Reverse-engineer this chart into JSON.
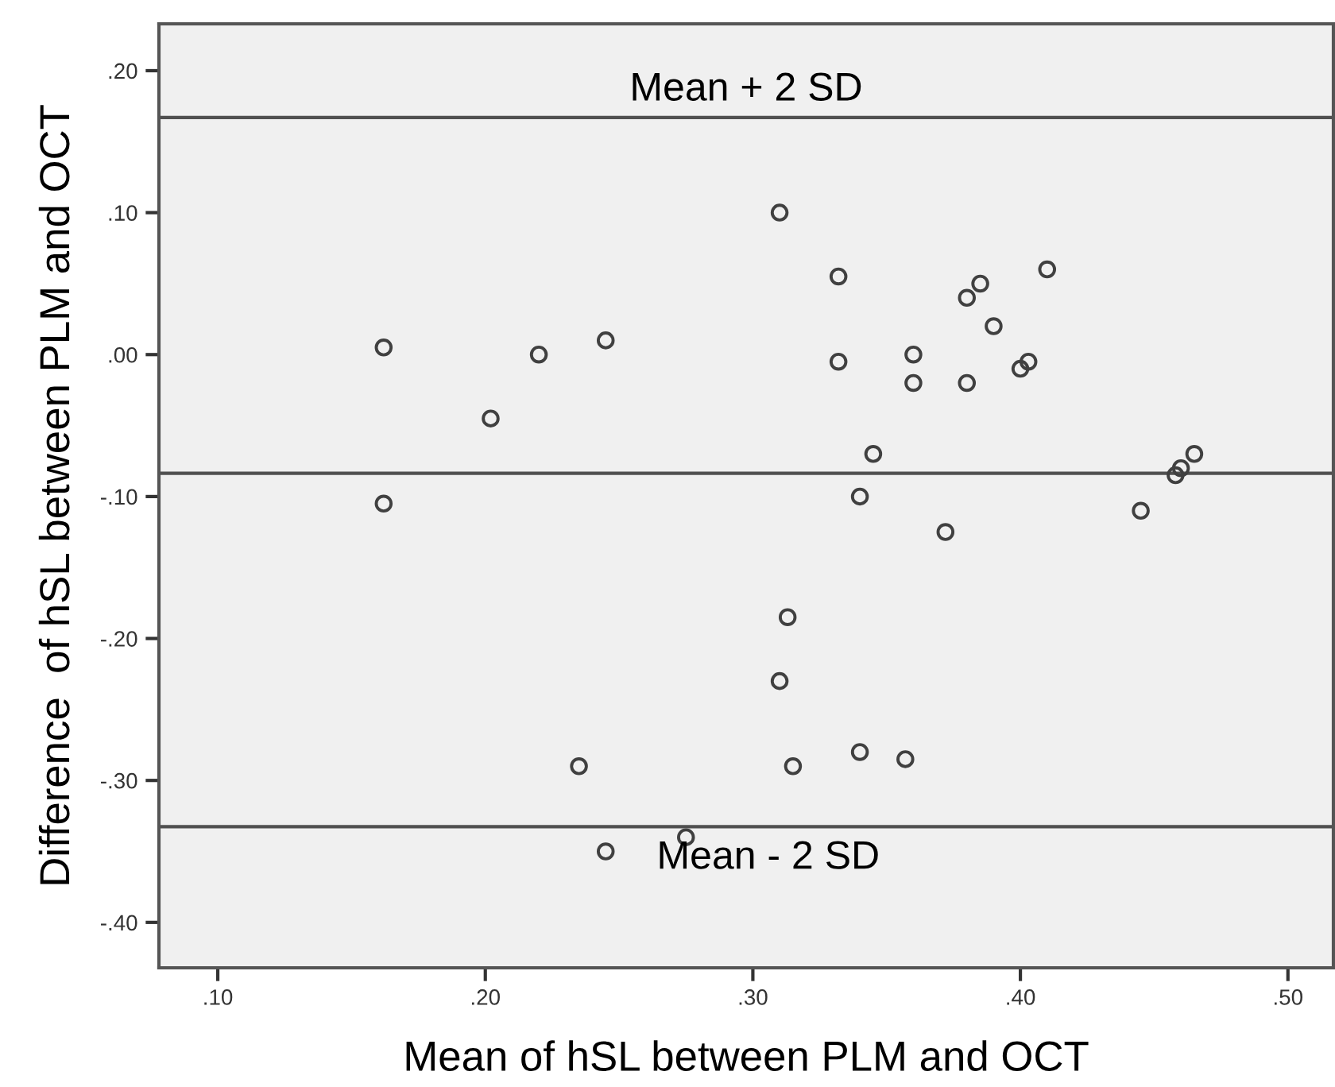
{
  "chart_data": {
    "type": "scatter",
    "xlabel": "Mean of hSL between PLM and OCT",
    "ylabel": "Difference  of hSL between PLM and OCT",
    "x": [
      0.162,
      0.202,
      0.22,
      0.245,
      0.162,
      0.31,
      0.332,
      0.332,
      0.36,
      0.36,
      0.38,
      0.385,
      0.39,
      0.41,
      0.38,
      0.4,
      0.403,
      0.345,
      0.34,
      0.445,
      0.458,
      0.46,
      0.465,
      0.372,
      0.313,
      0.31,
      0.315,
      0.34,
      0.357,
      0.235,
      0.245,
      0.275
    ],
    "series": [
      {
        "color": "#404040",
        "values": [
          0.005,
          -0.045,
          0.0,
          0.01,
          -0.105,
          0.1,
          0.055,
          -0.005,
          0.0,
          -0.02,
          0.04,
          0.05,
          0.02,
          0.06,
          -0.02,
          -0.01,
          -0.005,
          -0.07,
          -0.1,
          -0.11,
          -0.085,
          -0.08,
          -0.07,
          -0.125,
          -0.185,
          -0.23,
          -0.29,
          -0.28,
          -0.285,
          -0.29,
          -0.35,
          -0.34
        ]
      }
    ],
    "marker": "circle",
    "grid": false,
    "legend": false,
    "xlim": [
      0.078,
      0.517
    ],
    "ylim": [
      -0.432,
      0.233
    ],
    "xticks": [
      {
        "value": 0.1,
        "label": ".10"
      },
      {
        "value": 0.2,
        "label": ".20"
      },
      {
        "value": 0.3,
        "label": ".30"
      },
      {
        "value": 0.4,
        "label": ".40"
      },
      {
        "value": 0.5,
        "label": ".50"
      }
    ],
    "yticks": [
      {
        "value": -0.4,
        "label": "-.40"
      },
      {
        "value": -0.3,
        "label": "-.30"
      },
      {
        "value": -0.2,
        "label": "-.20"
      },
      {
        "value": -0.1,
        "label": "-.10"
      },
      {
        "value": 0.0,
        "label": ".00"
      },
      {
        "value": 0.1,
        "label": ".10"
      },
      {
        "value": 0.2,
        "label": ".20"
      }
    ],
    "ref_lines": [
      {
        "axis": "y",
        "value": 0.167,
        "label": "Mean + 2 SD",
        "color": "#505050"
      },
      {
        "axis": "y",
        "value": -0.0836,
        "color": "#505050"
      },
      {
        "axis": "y",
        "value": -0.3326,
        "label": "Mean - 2 SD",
        "color": "#505050"
      }
    ]
  }
}
